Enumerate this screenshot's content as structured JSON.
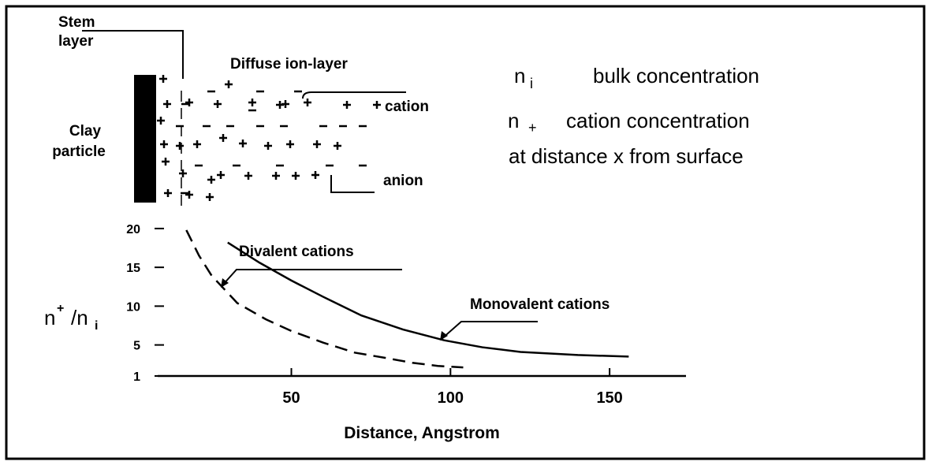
{
  "diagram": {
    "stem_label": [
      "Stem",
      "layer"
    ],
    "diffuse_label": "Diffuse ion-layer",
    "clay_label": [
      "Clay",
      "particle"
    ],
    "cation_label": "cation",
    "anion_label": "anion",
    "legend": [
      {
        "symbol": "n",
        "sub": "i",
        "text": "bulk concentration"
      },
      {
        "symbol": "n",
        "sub": "+",
        "text": "cation concentration"
      },
      {
        "text": "at distance x from surface"
      }
    ]
  },
  "chart_data": {
    "type": "line",
    "xlabel": "Distance, Angstrom",
    "ylabel": {
      "main": "n",
      "sup": "+",
      "slash": "/n",
      "sub": "i"
    },
    "xlim": [
      8,
      174
    ],
    "ylim": [
      1,
      20.5
    ],
    "xticks": [
      50,
      100,
      150
    ],
    "yticks": [
      20,
      15,
      10,
      5,
      1
    ],
    "series": [
      {
        "name": "Monovalent cations",
        "color": "#000000",
        "dash": false,
        "x": [
          30,
          40,
          50,
          60,
          72,
          85,
          98,
          110,
          122,
          140,
          156
        ],
        "values": [
          18.2,
          15.6,
          13.3,
          11.2,
          8.8,
          7.0,
          5.6,
          4.7,
          4.1,
          3.7,
          3.5
        ]
      },
      {
        "name": "Divalent cations",
        "color": "#000000",
        "dash": true,
        "x": [
          17,
          21,
          25,
          33,
          42,
          50,
          60,
          70,
          80,
          88,
          96,
          104
        ],
        "values": [
          19.8,
          16.5,
          13.9,
          10.4,
          8.3,
          6.8,
          5.3,
          4.0,
          3.3,
          2.7,
          2.3,
          2.1
        ]
      }
    ]
  }
}
